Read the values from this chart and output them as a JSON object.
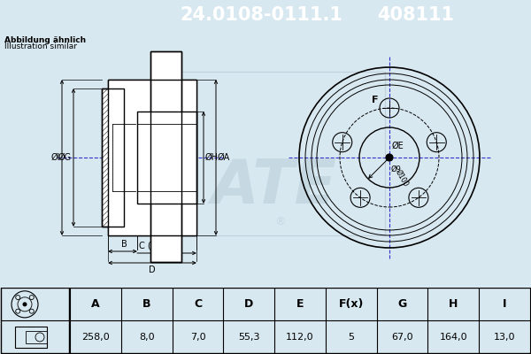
{
  "title_part": "24.0108-0111.1",
  "title_num": "408111",
  "subtitle1": "Abbildung ähnlich",
  "subtitle2": "Illustration similar",
  "header_bg": "#0000ee",
  "header_text_color": "#ffffff",
  "bg_color": "#d8e8f0",
  "table_headers": [
    "A",
    "B",
    "C",
    "D",
    "E",
    "F(x)",
    "G",
    "H",
    "I"
  ],
  "table_values": [
    "258,0",
    "8,0",
    "7,0",
    "55,3",
    "112,0",
    "5",
    "67,0",
    "164,0",
    "13,0"
  ],
  "watermark": "ATE"
}
